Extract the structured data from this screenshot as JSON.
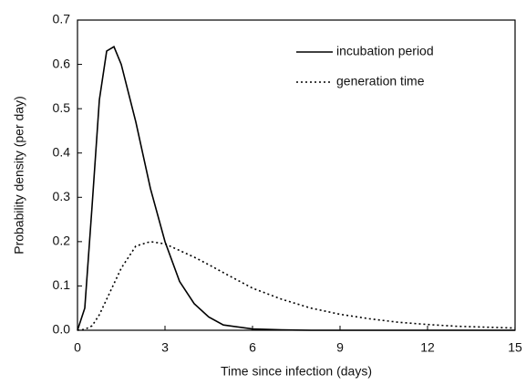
{
  "chart_data": {
    "type": "line",
    "xlabel": "Time since infection (days)",
    "ylabel": "Probability density (per day)",
    "x": [
      0,
      0.25,
      0.5,
      0.75,
      1,
      1.25,
      1.5,
      2,
      2.5,
      3,
      3.5,
      4,
      4.5,
      5,
      6,
      7,
      8,
      9,
      10,
      11,
      12,
      13,
      14,
      15
    ],
    "series": [
      {
        "name": "incubation period",
        "color": "#000000",
        "dash": "solid",
        "values": [
          0,
          0.05,
          0.28,
          0.52,
          0.63,
          0.64,
          0.6,
          0.47,
          0.32,
          0.2,
          0.11,
          0.06,
          0.03,
          0.012,
          0.003,
          0.001,
          0,
          0,
          0,
          0,
          0,
          0,
          0,
          0
        ]
      },
      {
        "name": "generation time",
        "color": "#000000",
        "dash": "dotted",
        "values": [
          0,
          0.002,
          0.01,
          0.035,
          0.07,
          0.105,
          0.14,
          0.19,
          0.2,
          0.195,
          0.18,
          0.165,
          0.148,
          0.13,
          0.095,
          0.07,
          0.05,
          0.036,
          0.026,
          0.018,
          0.013,
          0.009,
          0.007,
          0.005
        ]
      }
    ],
    "xlim": [
      0,
      15
    ],
    "xticks": [
      0,
      3,
      6,
      9,
      12,
      15
    ],
    "ylim": [
      0,
      0.7
    ],
    "yticks": [
      {
        "value": 0,
        "label": "0.0"
      },
      0.1,
      0.2,
      0.3,
      0.4,
      0.5,
      0.6,
      0.7
    ],
    "legend": "upper right",
    "grid": false
  }
}
